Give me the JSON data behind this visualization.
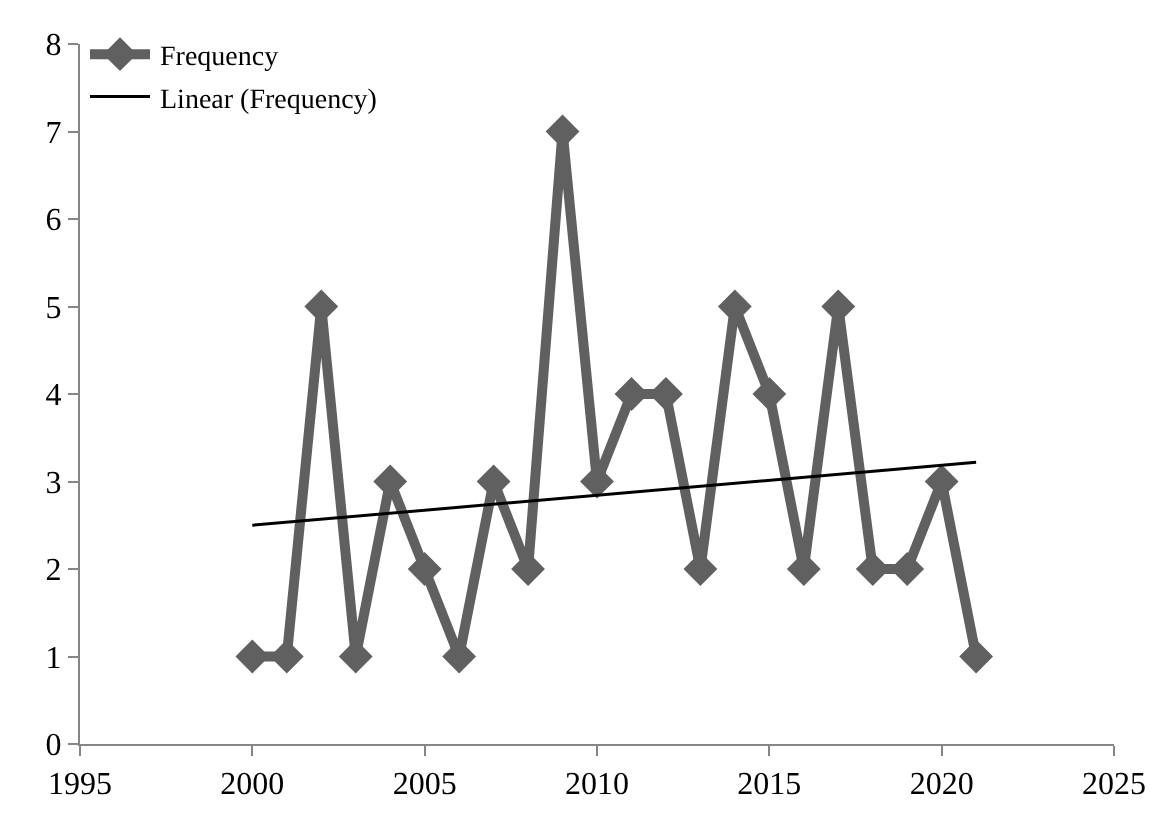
{
  "chart_data": {
    "type": "line",
    "x": [
      2000,
      2001,
      2002,
      2003,
      2004,
      2005,
      2006,
      2007,
      2008,
      2009,
      2010,
      2011,
      2012,
      2013,
      2014,
      2015,
      2016,
      2017,
      2018,
      2019,
      2020,
      2021
    ],
    "series": [
      {
        "name": "Frequency",
        "color": "#606060",
        "marker": "diamond",
        "values": [
          1,
          1,
          5,
          1,
          3,
          2,
          1,
          3,
          2,
          7,
          3,
          4,
          4,
          2,
          5,
          4,
          2,
          5,
          2,
          2,
          3,
          1
        ]
      },
      {
        "name": "Linear (Frequency)",
        "color": "#000000",
        "marker": "none",
        "x": [
          2000,
          2021
        ],
        "values": [
          2.5,
          3.22
        ]
      }
    ],
    "xlim": [
      1995,
      2025
    ],
    "xticks": [
      1995,
      2000,
      2005,
      2010,
      2015,
      2020,
      2025
    ],
    "ylim": [
      0,
      8
    ],
    "yticks": [
      0,
      1,
      2,
      3,
      4,
      5,
      6,
      7,
      8
    ],
    "legend": "top left"
  }
}
